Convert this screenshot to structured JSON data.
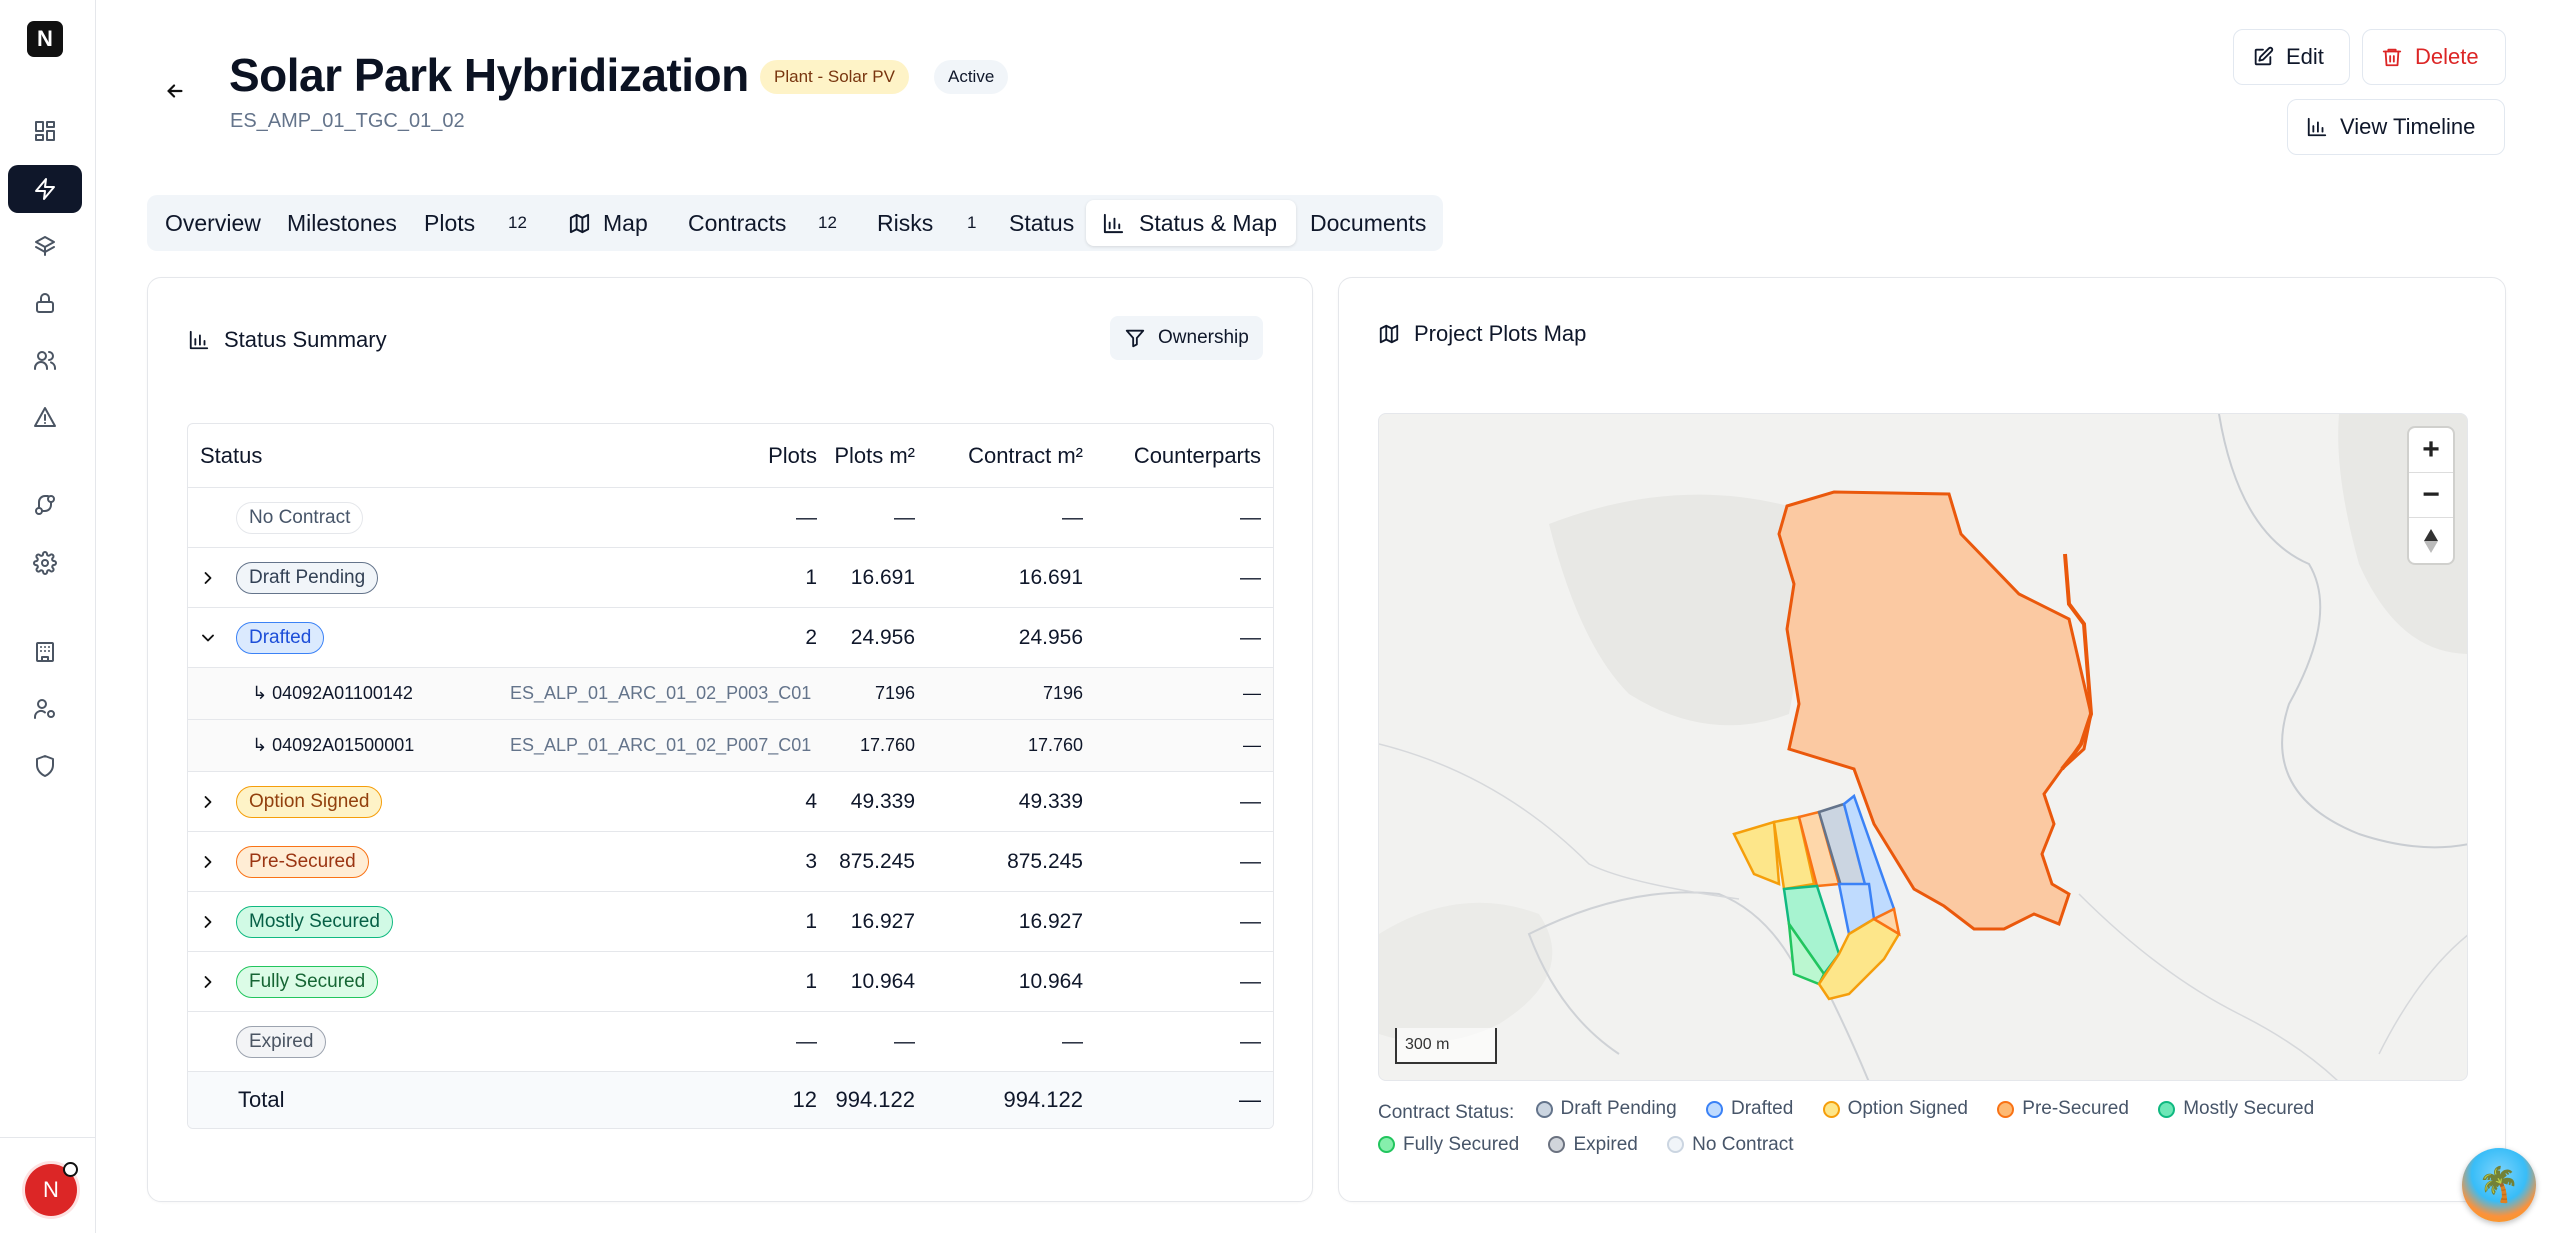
{
  "app": {
    "logo_letter": "N",
    "user_initial": "N"
  },
  "sidebar": {
    "items": [
      {
        "icon": "dashboard-icon"
      },
      {
        "icon": "bolt-icon",
        "active": true
      },
      {
        "icon": "layers-icon"
      },
      {
        "icon": "lock-icon"
      },
      {
        "icon": "users-icon"
      },
      {
        "icon": "alert-triangle-icon"
      },
      {
        "icon": "git-branch-icon"
      },
      {
        "icon": "gear-icon"
      },
      {
        "icon": "building-icon"
      },
      {
        "icon": "user-cog-icon"
      },
      {
        "icon": "shield-icon"
      }
    ]
  },
  "header": {
    "title": "Solar Park Hybridization",
    "type_badge": "Plant - Solar PV",
    "status_badge": "Active",
    "code": "ES_AMP_01_TGC_01_02",
    "edit_label": "Edit",
    "delete_label": "Delete",
    "timeline_label": "View Timeline"
  },
  "tabs": [
    {
      "label": "Overview"
    },
    {
      "label": "Milestones"
    },
    {
      "label": "Plots",
      "count": "12"
    },
    {
      "label": "Map"
    },
    {
      "label": "Contracts",
      "count": "12"
    },
    {
      "label": "Risks",
      "count": "1"
    },
    {
      "label": "Status"
    },
    {
      "label": "Status & Map",
      "active": true
    },
    {
      "label": "Documents"
    }
  ],
  "status_summary": {
    "title": "Status Summary",
    "filter_label": "Ownership",
    "columns": {
      "status": "Status",
      "plots": "Plots",
      "plots_m2": "Plots m²",
      "contract_m2": "Contract m²",
      "counterparts": "Counterparts"
    },
    "rows": [
      {
        "status": "No Contract",
        "plots": "—",
        "plots_m2": "—",
        "contract_m2": "—",
        "counterparts": "—"
      },
      {
        "status": "Draft Pending",
        "plots": "1",
        "plots_m2": "16.691",
        "contract_m2": "16.691",
        "counterparts": "—"
      },
      {
        "status": "Drafted",
        "plots": "2",
        "plots_m2": "24.956",
        "contract_m2": "24.956",
        "counterparts": "—"
      },
      {
        "status": "Option Signed",
        "plots": "4",
        "plots_m2": "49.339",
        "contract_m2": "49.339",
        "counterparts": "—"
      },
      {
        "status": "Pre-Secured",
        "plots": "3",
        "plots_m2": "875.245",
        "contract_m2": "875.245",
        "counterparts": "—"
      },
      {
        "status": "Mostly Secured",
        "plots": "1",
        "plots_m2": "16.927",
        "contract_m2": "16.927",
        "counterparts": "—"
      },
      {
        "status": "Fully Secured",
        "plots": "1",
        "plots_m2": "10.964",
        "contract_m2": "10.964",
        "counterparts": "—"
      },
      {
        "status": "Expired",
        "plots": "—",
        "plots_m2": "—",
        "contract_m2": "—",
        "counterparts": "—"
      }
    ],
    "drafted_children": [
      {
        "code": "↳ 04092A01100142",
        "ref": "ES_ALP_01_ARC_01_02_P003_C01",
        "plots_m2": "7196",
        "contract_m2": "7196",
        "counterparts": "—"
      },
      {
        "code": "↳ 04092A01500001",
        "ref": "ES_ALP_01_ARC_01_02_P007_C01",
        "plots_m2": "17.760",
        "contract_m2": "17.760",
        "counterparts": "—"
      }
    ],
    "total": {
      "label": "Total",
      "plots": "12",
      "plots_m2": "994.122",
      "contract_m2": "994.122",
      "counterparts": "—"
    }
  },
  "map": {
    "title": "Project Plots Map",
    "scale_label": "300 m",
    "zoom_in": "+",
    "zoom_out": "−",
    "legend_label": "Contract Status:",
    "legend": [
      {
        "label": "Draft Pending",
        "color": "#94a3b8"
      },
      {
        "label": "Drafted",
        "color": "#60a5fa"
      },
      {
        "label": "Option Signed",
        "color": "#fbbf24"
      },
      {
        "label": "Pre-Secured",
        "color": "#fb923c"
      },
      {
        "label": "Mostly Secured",
        "color": "#34d399"
      },
      {
        "label": "Fully Secured",
        "color": "#4ade80"
      },
      {
        "label": "Expired",
        "color": "#9ca3af"
      },
      {
        "label": "No Contract",
        "color": "#e2e8f0"
      }
    ]
  }
}
